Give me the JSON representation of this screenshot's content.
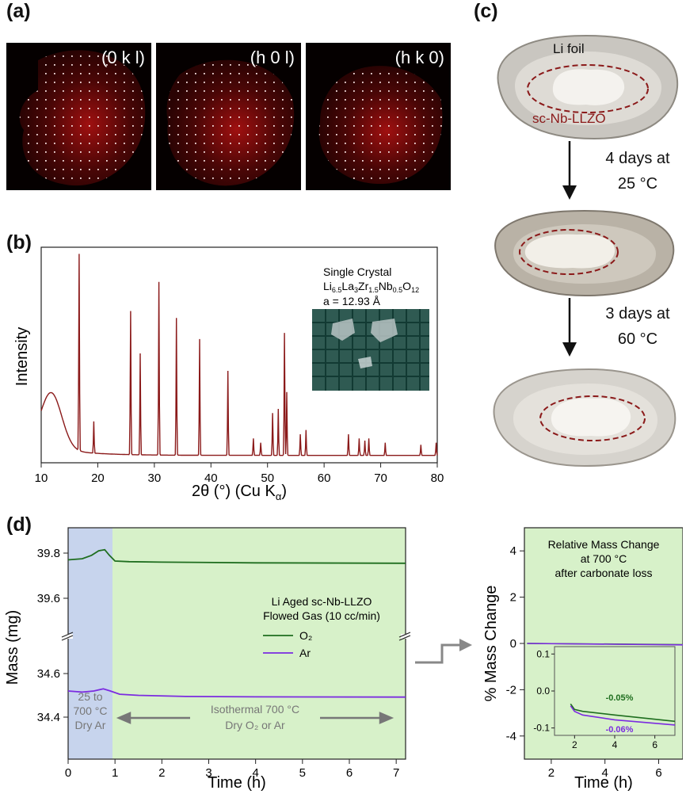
{
  "panels": {
    "a": {
      "label": "(a)",
      "patterns": [
        "(0 k l)",
        "(h 0 l)",
        "(h k 0)"
      ]
    },
    "b": {
      "label": "(b)"
    },
    "c": {
      "label": "(c)",
      "li_foil": "Li foil",
      "sample": "sc-Nb-LLZO",
      "step1_line1": "4 days at",
      "step1_line2": "25 °C",
      "step2_line1": "3 days at",
      "step2_line2": "60 °C"
    },
    "d": {
      "label": "(d)",
      "region1_line1": "25 to",
      "region1_line2": "700 °C",
      "region1_line3": "Dry Ar",
      "region2_line1": "Isothermal 700 °C",
      "region2_line2": "Dry O₂ or Ar",
      "legend_title1": "Li Aged sc-Nb-LLZO",
      "legend_title2": "Flowed Gas (10 cc/min)",
      "legend_o2": "O₂",
      "legend_ar": "Ar",
      "right_title1": "Relative Mass Change",
      "right_title2": "at 700 °C",
      "right_title3": "after carbonate loss",
      "inset_o2_value": "-0.05%",
      "inset_ar_value": "-0.06%"
    }
  },
  "chart_data": [
    {
      "type": "line",
      "title": "",
      "xlabel": "2θ (°) (Cu Kα)",
      "ylabel": "Intensity",
      "xlim": [
        10,
        80
      ],
      "xticks": [
        "10",
        "20",
        "30",
        "40",
        "50",
        "60",
        "70",
        "80"
      ],
      "inset_title": "Single Crystal",
      "inset_formula": "Li6.5La3Zr1.5Nb0.5O12",
      "inset_param": "a = 12.93 Å",
      "color": "#8b1a1a",
      "peaks": [
        {
          "x": 16.7,
          "h": 0.93
        },
        {
          "x": 19.3,
          "h": 0.15
        },
        {
          "x": 25.8,
          "h": 0.68
        },
        {
          "x": 27.5,
          "h": 0.48
        },
        {
          "x": 30.8,
          "h": 0.82
        },
        {
          "x": 33.9,
          "h": 0.65
        },
        {
          "x": 38.0,
          "h": 0.55
        },
        {
          "x": 43.0,
          "h": 0.4
        },
        {
          "x": 47.5,
          "h": 0.08
        },
        {
          "x": 48.8,
          "h": 0.06
        },
        {
          "x": 50.9,
          "h": 0.2
        },
        {
          "x": 51.9,
          "h": 0.22
        },
        {
          "x": 53.0,
          "h": 0.58
        },
        {
          "x": 53.4,
          "h": 0.3
        },
        {
          "x": 55.8,
          "h": 0.1
        },
        {
          "x": 56.8,
          "h": 0.12
        },
        {
          "x": 64.3,
          "h": 0.1
        },
        {
          "x": 66.2,
          "h": 0.08
        },
        {
          "x": 67.2,
          "h": 0.07
        },
        {
          "x": 67.9,
          "h": 0.08
        },
        {
          "x": 70.8,
          "h": 0.06
        },
        {
          "x": 77.1,
          "h": 0.05
        },
        {
          "x": 79.8,
          "h": 0.06
        }
      ]
    },
    {
      "type": "line",
      "xlabel": "Time (h)",
      "ylabel": "Mass (mg)",
      "xlim": [
        0,
        7.2
      ],
      "xticks": [
        "0",
        "1",
        "2",
        "3",
        "4",
        "5",
        "6",
        "7"
      ],
      "yticks_upper": [
        "39.8",
        "39.6"
      ],
      "yticks_lower": [
        "34.6",
        "34.4"
      ],
      "series": [
        {
          "name": "O₂",
          "color": "#1f6e1f",
          "x": [
            0,
            0.3,
            0.5,
            0.65,
            0.78,
            0.88,
            1.0,
            1.3,
            2,
            4,
            7.2
          ],
          "y": [
            39.77,
            39.775,
            39.79,
            39.81,
            39.815,
            39.79,
            39.765,
            39.762,
            39.76,
            39.757,
            39.755
          ]
        },
        {
          "name": "Ar",
          "color": "#7b2be0",
          "x": [
            0,
            0.3,
            0.55,
            0.75,
            0.9,
            1.1,
            1.5,
            2.5,
            4,
            7.2
          ],
          "y": [
            34.52,
            34.515,
            34.52,
            34.53,
            34.52,
            34.505,
            34.5,
            34.495,
            34.493,
            34.492
          ]
        }
      ]
    },
    {
      "type": "line",
      "xlabel": "Time (h)",
      "ylabel": "% Mass Change",
      "xlim": [
        1,
        6.9
      ],
      "ylim": [
        -5,
        5
      ],
      "xticks": [
        "2",
        "4",
        "6"
      ],
      "yticks": [
        "4",
        "2",
        "0",
        "-2",
        "-4"
      ],
      "series": [
        {
          "name": "O₂",
          "color": "#1f6e1f",
          "x": [
            1.1,
            6.9
          ],
          "y": [
            0,
            -0.05
          ]
        },
        {
          "name": "Ar",
          "color": "#7b2be0",
          "x": [
            1.1,
            6.9
          ],
          "y": [
            0,
            -0.06
          ]
        }
      ],
      "inset": {
        "xlim": [
          1,
          7
        ],
        "ylim": [
          -0.12,
          0.12
        ],
        "xticks": [
          "2",
          "4",
          "6"
        ],
        "yticks": [
          "0.1",
          "0.0",
          "-0.1"
        ],
        "series": [
          {
            "name": "O₂",
            "x": [
              1.8,
              2.0,
              2.4,
              4,
              7
            ],
            "y": [
              -0.035,
              -0.05,
              -0.055,
              -0.065,
              -0.082
            ]
          },
          {
            "name": "Ar",
            "x": [
              1.8,
              2.0,
              2.4,
              4,
              7
            ],
            "y": [
              -0.04,
              -0.055,
              -0.065,
              -0.078,
              -0.092
            ]
          }
        ]
      }
    }
  ]
}
